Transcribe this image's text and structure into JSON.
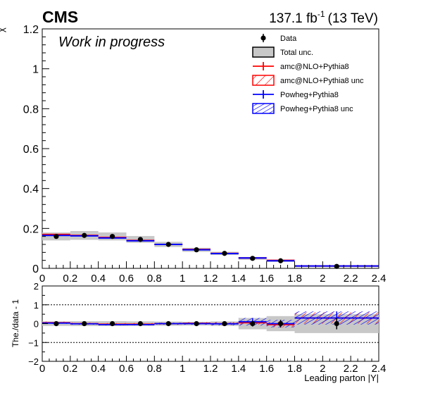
{
  "header": {
    "experiment": "CMS",
    "lumi_value": "137.1 fb",
    "lumi_exponent": "-1",
    "energy": "(13 TeV)",
    "status": "Work in progress"
  },
  "colors": {
    "amc": "#ff0000",
    "powheg": "#0000ff",
    "total_unc_fill": "#c8c8c8",
    "data": "#000000"
  },
  "legend": {
    "placement": "top-right",
    "entries": [
      {
        "key": "data",
        "label": "Data"
      },
      {
        "key": "total",
        "label": "Total unc."
      },
      {
        "key": "amc",
        "label": "amc@NLO+Pythia8"
      },
      {
        "key": "amc_unc",
        "label": "amc@NLO+Pythia8 unc"
      },
      {
        "key": "powheg",
        "label": "Powheg+Pythia8"
      },
      {
        "key": "powheg_unc",
        "label": "Powheg+Pythia8 unc"
      }
    ]
  },
  "chart_data": [
    {
      "type": "step",
      "panel": "main",
      "ylabel": "χ",
      "xlim": [
        0,
        2.4
      ],
      "ylim": [
        0,
        1.2
      ],
      "xticks": [
        "0",
        "0.2",
        "0.4",
        "0.6",
        "0.8",
        "1",
        "1.2",
        "1.4",
        "1.6",
        "1.8",
        "2",
        "2.2",
        "2.4"
      ],
      "yticks": [
        "0",
        "0.2",
        "0.4",
        "0.6",
        "0.8",
        "1",
        "1.2"
      ],
      "bin_edges": [
        0,
        0.2,
        0.4,
        0.6,
        0.8,
        1.0,
        1.2,
        1.4,
        1.6,
        1.8,
        2.4
      ],
      "data": {
        "name": "Data",
        "x": [
          0.1,
          0.3,
          0.5,
          0.7,
          0.9,
          1.1,
          1.3,
          1.5,
          1.7,
          2.1
        ],
        "y": [
          0.16,
          0.165,
          0.16,
          0.145,
          0.12,
          0.093,
          0.075,
          0.05,
          0.038,
          0.01
        ],
        "total_unc": [
          0.02,
          0.022,
          0.02,
          0.017,
          0.013,
          0.01,
          0.008,
          0.007,
          0.006,
          0.003
        ]
      },
      "series": [
        {
          "name": "amc@NLO+Pythia8",
          "values": [
            0.17,
            0.165,
            0.155,
            0.14,
            0.12,
            0.095,
            0.075,
            0.052,
            0.04,
            0.012
          ]
        },
        {
          "name": "Powheg+Pythia8",
          "values": [
            0.165,
            0.163,
            0.152,
            0.138,
            0.12,
            0.093,
            0.074,
            0.052,
            0.038,
            0.012
          ]
        }
      ]
    },
    {
      "type": "step",
      "panel": "ratio",
      "ylabel": "The./data - 1",
      "xlabel": "Leading parton |Y|",
      "xlim": [
        0,
        2.4
      ],
      "ylim": [
        -2,
        2
      ],
      "xticks": [
        "0",
        "0.2",
        "0.4",
        "0.6",
        "0.8",
        "1",
        "1.2",
        "1.4",
        "1.6",
        "1.8",
        "2",
        "2.2",
        "2.4"
      ],
      "yticks": [
        "−2",
        "−1",
        "0",
        "1",
        "2"
      ],
      "bin_edges": [
        0,
        0.2,
        0.4,
        0.6,
        0.8,
        1.0,
        1.2,
        1.4,
        1.6,
        1.8,
        2.4
      ],
      "data_x": [
        0.1,
        0.3,
        0.5,
        0.7,
        0.9,
        1.1,
        1.3,
        1.5,
        1.7,
        2.1
      ],
      "data_y": [
        0,
        0,
        0,
        0,
        0,
        0,
        0,
        0,
        0,
        0
      ],
      "data_err": [
        0.04,
        0.04,
        0.04,
        0.04,
        0.05,
        0.06,
        0.08,
        0.15,
        0.2,
        0.3
      ],
      "total_unc": [
        0.12,
        0.13,
        0.13,
        0.12,
        0.11,
        0.1,
        0.12,
        0.3,
        0.4,
        0.5
      ],
      "series": [
        {
          "name": "amc@NLO+Pythia8",
          "values": [
            0.05,
            0.0,
            -0.03,
            -0.03,
            0.0,
            0.02,
            0.0,
            0.05,
            -0.05,
            0.3
          ],
          "unc": [
            0.06,
            0.06,
            0.06,
            0.06,
            0.06,
            0.06,
            0.08,
            0.1,
            0.15,
            0.3
          ]
        },
        {
          "name": "Powheg+Pythia8",
          "values": [
            0.03,
            -0.01,
            -0.05,
            -0.05,
            0.0,
            0.0,
            -0.01,
            0.1,
            0.0,
            0.3
          ],
          "unc": [
            0.04,
            0.04,
            0.04,
            0.04,
            0.05,
            0.06,
            0.08,
            0.2,
            0.2,
            0.35
          ]
        }
      ]
    }
  ]
}
